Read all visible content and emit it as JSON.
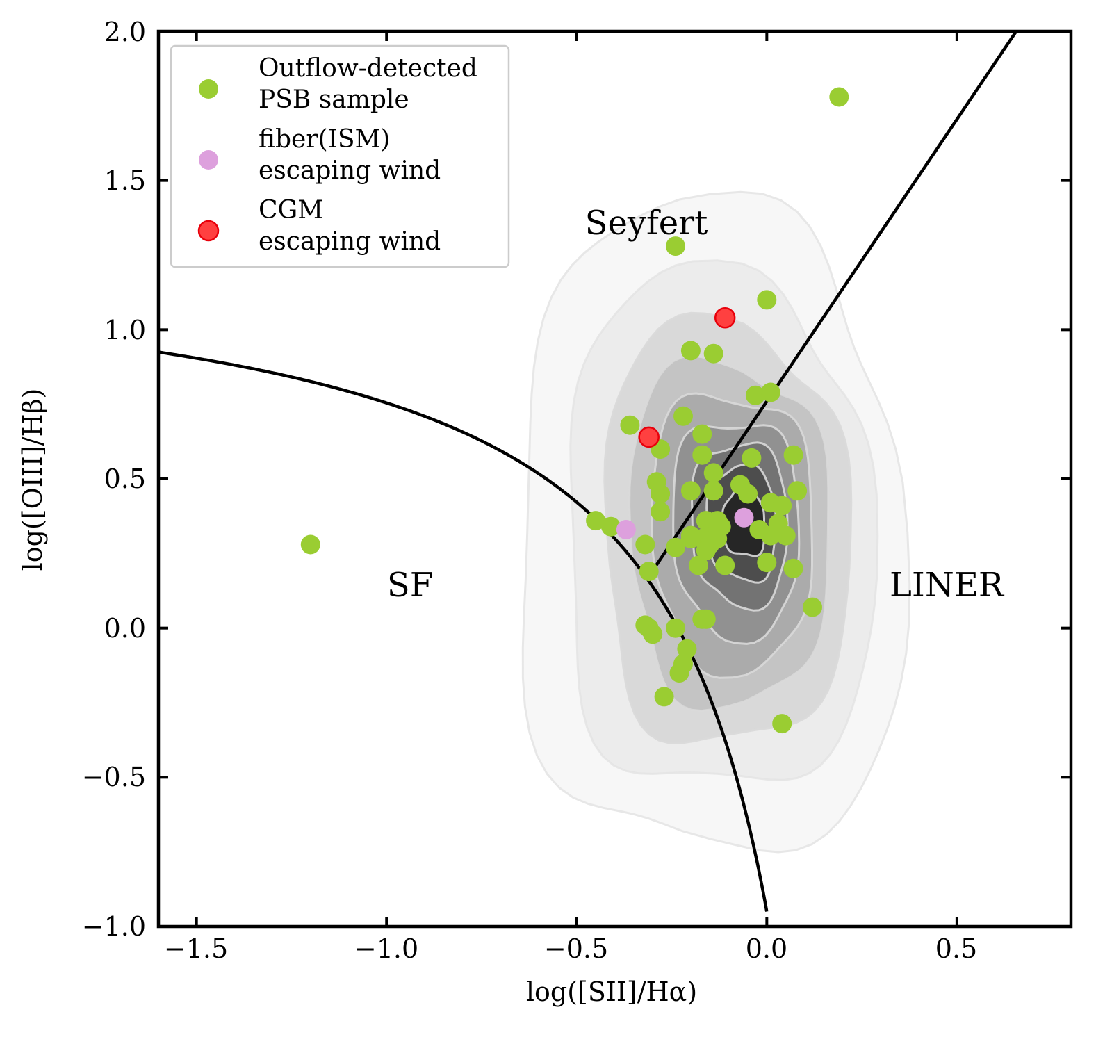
{
  "chart_data": {
    "type": "scatter",
    "xlabel": "log([SII]/Hα)",
    "ylabel": "log([OIII]/Hβ)",
    "xlim": [
      -1.6,
      0.8
    ],
    "ylim": [
      -1.0,
      2.0
    ],
    "x_ticks": [
      -1.5,
      -1.0,
      -0.5,
      0.0,
      0.5
    ],
    "x_tick_labels": [
      "−1.5",
      "−1.0",
      "−0.5",
      "0.0",
      "0.5"
    ],
    "y_ticks": [
      -1.0,
      -0.5,
      0.0,
      0.5,
      1.0,
      1.5,
      2.0
    ],
    "y_tick_labels": [
      "−1.0",
      "−0.5",
      "0.0",
      "0.5",
      "1.0",
      "1.5",
      "2.0"
    ],
    "grid": false,
    "legend_position": "top-left",
    "region_labels": [
      {
        "text": "Seyfert",
        "x": -0.31,
        "y": 1.33
      },
      {
        "text": "SF",
        "x": -0.98,
        "y": 0.12
      },
      {
        "text": "LINER",
        "x": 0.48,
        "y": 0.12
      }
    ],
    "background_density": {
      "description": "grey filled KDE contours of parent galaxy sample",
      "levels": [
        {
          "cx": -0.15,
          "cy": 0.32,
          "rx": 0.5,
          "ry": 1.08,
          "color": "#f7f7f7"
        },
        {
          "cx": -0.13,
          "cy": 0.31,
          "rx": 0.4,
          "ry": 0.86,
          "color": "#ececec"
        },
        {
          "cx": -0.11,
          "cy": 0.31,
          "rx": 0.32,
          "ry": 0.7,
          "color": "#d9d9d9"
        },
        {
          "cx": -0.1,
          "cy": 0.32,
          "rx": 0.26,
          "ry": 0.57,
          "color": "#c4c4c4"
        },
        {
          "cx": -0.09,
          "cy": 0.33,
          "rx": 0.21,
          "ry": 0.46,
          "color": "#ababab"
        },
        {
          "cx": -0.08,
          "cy": 0.34,
          "rx": 0.165,
          "ry": 0.36,
          "color": "#919191"
        },
        {
          "cx": -0.07,
          "cy": 0.35,
          "rx": 0.125,
          "ry": 0.27,
          "color": "#737373"
        },
        {
          "cx": -0.065,
          "cy": 0.35,
          "rx": 0.09,
          "ry": 0.19,
          "color": "#4d4d4d"
        },
        {
          "cx": -0.06,
          "cy": 0.35,
          "rx": 0.055,
          "ry": 0.11,
          "color": "#262626"
        }
      ]
    },
    "series": [
      {
        "name": "Outflow-detected PSB sample",
        "legend_lines": [
          "Outflow-detected",
          "PSB sample"
        ],
        "color": "#9acd32",
        "x": [
          0.19,
          -0.24,
          0.0,
          -0.2,
          -0.14,
          -0.03,
          0.01,
          -0.36,
          -0.22,
          -0.28,
          -0.17,
          -0.17,
          -0.04,
          0.07,
          -0.14,
          -0.29,
          -0.07,
          -0.28,
          -0.2,
          -0.14,
          -0.05,
          0.01,
          0.04,
          0.08,
          -0.28,
          -0.45,
          -0.41,
          -0.16,
          -0.15,
          -0.2,
          -0.12,
          -0.02,
          0.03,
          0.01,
          0.05,
          -0.32,
          -0.24,
          -0.17,
          -0.15,
          -0.16,
          -0.18,
          0.0,
          -0.11,
          0.07,
          -0.31,
          0.12,
          -0.32,
          -0.31,
          -0.3,
          -0.24,
          -0.17,
          -0.16,
          -0.21,
          -0.22,
          -0.23,
          -0.27,
          0.04,
          -1.2,
          -0.2,
          -0.13,
          -0.13,
          -0.13
        ],
        "y": [
          1.78,
          1.28,
          1.1,
          0.93,
          0.92,
          0.78,
          0.79,
          0.68,
          0.71,
          0.6,
          0.65,
          0.58,
          0.57,
          0.58,
          0.52,
          0.49,
          0.48,
          0.45,
          0.46,
          0.46,
          0.45,
          0.42,
          0.41,
          0.46,
          0.39,
          0.36,
          0.34,
          0.36,
          0.33,
          0.31,
          0.34,
          0.33,
          0.35,
          0.31,
          0.31,
          0.28,
          0.27,
          0.3,
          0.28,
          0.26,
          0.21,
          0.22,
          0.21,
          0.2,
          0.19,
          0.07,
          0.01,
          0.0,
          -0.02,
          0.0,
          0.03,
          0.03,
          -0.07,
          -0.12,
          -0.15,
          -0.23,
          -0.32,
          0.28,
          0.3,
          0.35,
          0.3,
          0.36
        ]
      },
      {
        "name": "fiber(ISM) escaping wind",
        "legend_lines": [
          "fiber(ISM)",
          "escaping wind"
        ],
        "color": "#dda0dd",
        "x": [
          -0.37,
          -0.06
        ],
        "y": [
          0.33,
          0.37
        ]
      },
      {
        "name": "CGM escaping wind",
        "legend_lines": [
          "CGM",
          "escaping wind"
        ],
        "color": "#ff4040",
        "edge_color": "#e8000b",
        "x": [
          -0.31,
          -0.11
        ],
        "y": [
          0.64,
          1.04
        ]
      }
    ],
    "lines": [
      {
        "name": "Kewley SF/AGN demarcation",
        "formula": "y = 0.72/(x - 0.32) + 1.30",
        "x_range": [
          -1.6,
          0.0
        ]
      },
      {
        "name": "Seyfert/LINER division",
        "formula": "y = 1.89x + 0.76",
        "x_range": [
          -0.315,
          0.66
        ]
      }
    ]
  }
}
